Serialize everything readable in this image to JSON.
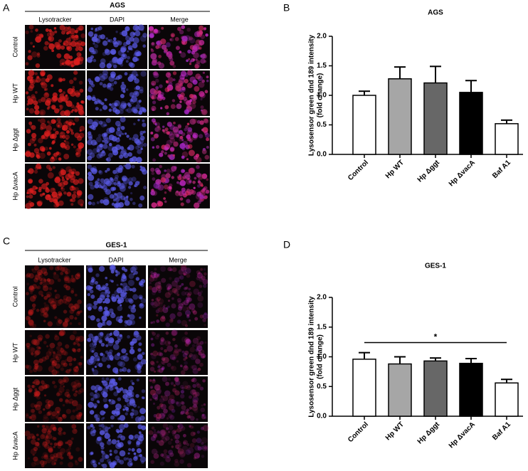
{
  "figure": {
    "panels": [
      {
        "letter": "A",
        "title": "AGS",
        "columns": [
          "Lysotracker",
          "DAPI",
          "Merge"
        ],
        "rows": [
          "Control",
          "Hp WT",
          "Hp Δggt",
          "Hp ΔvacA"
        ]
      },
      {
        "letter": "C",
        "title": "GES-1",
        "columns": [
          "Lysotracker",
          "DAPI",
          "Merge"
        ],
        "rows": [
          "Control",
          "Hp WT",
          "Hp Δggt",
          "Hp ΔvacA"
        ]
      }
    ],
    "chart_letters": [
      "B",
      "D"
    ]
  },
  "chart_data": [
    {
      "type": "bar",
      "title": "AGS",
      "ylabel": [
        "Lysosensor green dnd 189 intensity",
        "(fold change)"
      ],
      "categories": [
        "Control",
        "Hp WT",
        "Hp Δggt",
        "Hp ΔvacA",
        "Baf A1"
      ],
      "values": [
        1.0,
        1.28,
        1.21,
        1.05,
        0.52
      ],
      "errors": [
        0.07,
        0.2,
        0.28,
        0.2,
        0.06
      ],
      "colors": [
        "#ffffff",
        "#a6a6a6",
        "#676767",
        "#000000",
        "#ffffff"
      ],
      "ylim": [
        0,
        2
      ],
      "yticks": [
        {
          "value": 0,
          "label": "0.0"
        },
        {
          "value": 0.5,
          "label": "0.5"
        },
        {
          "value": 1,
          "label": "1.0"
        },
        {
          "value": 1.5,
          "label": "1.5"
        },
        {
          "value": 2,
          "label": "2.0"
        }
      ]
    },
    {
      "type": "bar",
      "title": "GES-1",
      "ylabel": [
        "Lysosensor green dnd 189 intensity",
        "(fold change)"
      ],
      "categories": [
        "Control",
        "Hp WT",
        "Hp Δggt",
        "Hp ΔvacA",
        "Baf A1"
      ],
      "values": [
        0.96,
        0.88,
        0.93,
        0.89,
        0.56
      ],
      "errors": [
        0.11,
        0.12,
        0.05,
        0.08,
        0.06
      ],
      "colors": [
        "#ffffff",
        "#a6a6a6",
        "#676767",
        "#000000",
        "#ffffff"
      ],
      "ylim": [
        0,
        2
      ],
      "yticks": [
        {
          "value": 0,
          "label": "0.0"
        },
        {
          "value": 0.5,
          "label": "0.5"
        },
        {
          "value": 1,
          "label": "1.0"
        },
        {
          "value": 1.5,
          "label": "1.5"
        },
        {
          "value": 2,
          "label": "2.0"
        }
      ],
      "annotation": {
        "text": "*",
        "y": 1.24
      }
    }
  ]
}
